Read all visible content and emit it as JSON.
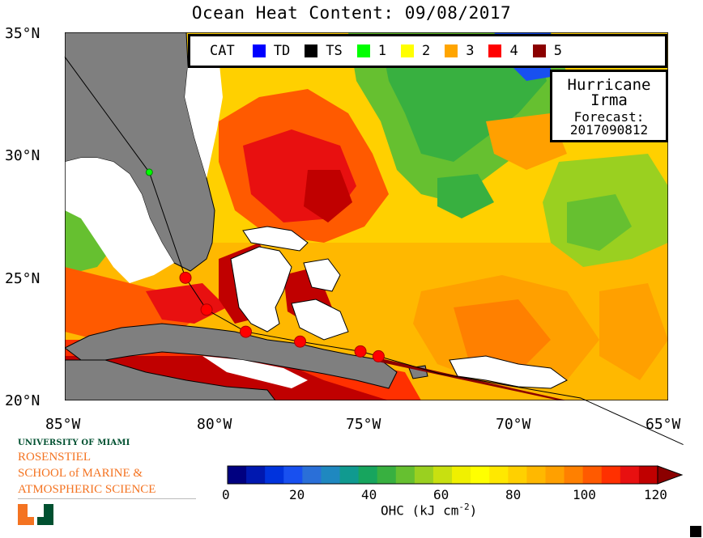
{
  "title": "Ocean Heat Content: 09/08/2017",
  "lat_labels": [
    "35°N",
    "30°N",
    "25°N",
    "20°N"
  ],
  "lon_labels": [
    "85°W",
    "80°W",
    "75°W",
    "70°W",
    "65°W"
  ],
  "legend": {
    "title": "CAT",
    "items": [
      {
        "label": "TD",
        "color": "#0000ff"
      },
      {
        "label": "TS",
        "color": "#000000"
      },
      {
        "label": "1",
        "color": "#00ff00"
      },
      {
        "label": "2",
        "color": "#ffff00"
      },
      {
        "label": "3",
        "color": "#ffa500"
      },
      {
        "label": "4",
        "color": "#ff0000"
      },
      {
        "label": "5",
        "color": "#8b0000"
      }
    ]
  },
  "storm": {
    "line1": "Hurricane",
    "line2": "Irma",
    "line3": "Forecast:",
    "line4": "2017090812"
  },
  "logo": {
    "university": "UNIVERSITY OF MIAMI",
    "school_line1": "ROSENSTIEL",
    "school_line2": "SCHOOL of MARINE &",
    "school_line3": "ATMOSPHERIC SCIENCE"
  },
  "colorbar": {
    "ticks": [
      "0",
      "20",
      "40",
      "60",
      "80",
      "100",
      "120"
    ],
    "units_prefix": "OHC (kJ cm",
    "units_exp": "-2",
    "units_suffix": ")",
    "colors": [
      "#000080",
      "#0018b0",
      "#0033dd",
      "#1850f0",
      "#2a6fd8",
      "#1f88c0",
      "#109a90",
      "#17a55e",
      "#38b040",
      "#66c030",
      "#9ad020",
      "#c8e010",
      "#f0f000",
      "#ffff00",
      "#ffe800",
      "#ffd000",
      "#ffb800",
      "#ffa000",
      "#ff8000",
      "#ff5a00",
      "#ff3000",
      "#e81010",
      "#c00000"
    ]
  },
  "track": [
    {
      "lon": -64.5,
      "lat": 18.2
    },
    {
      "lon": -67.9,
      "lat": 20.1
    },
    {
      "lon": -72.6,
      "lat": 21.1
    },
    {
      "lon": -74.6,
      "lat": 21.8
    },
    {
      "lon": -75.2,
      "lat": 22.0
    },
    {
      "lon": -77.2,
      "lat": 22.4
    },
    {
      "lon": -79.0,
      "lat": 22.8
    },
    {
      "lon": -80.3,
      "lat": 23.7
    },
    {
      "lon": -81.0,
      "lat": 25.0
    },
    {
      "lon": -82.2,
      "lat": 29.3
    },
    {
      "lon": -85.0,
      "lat": 34.0
    }
  ]
}
